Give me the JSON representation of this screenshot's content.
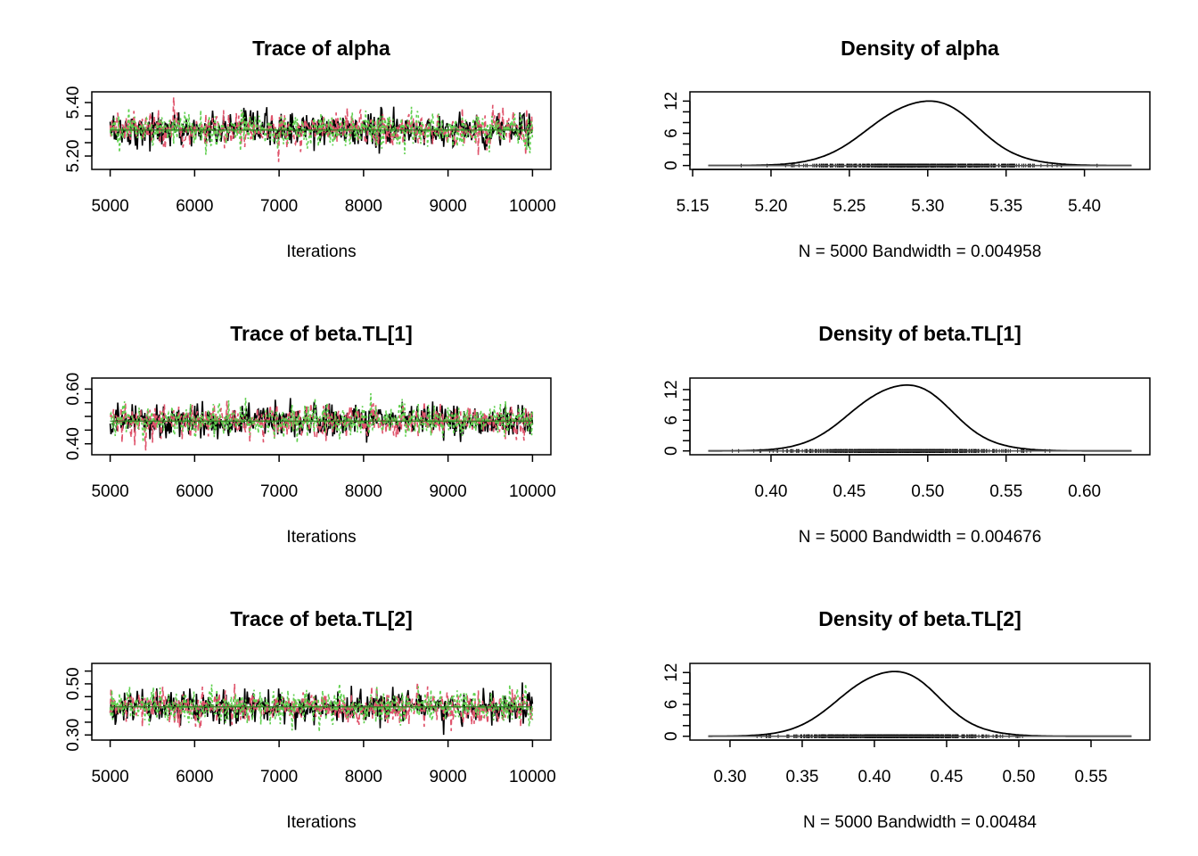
{
  "chart_data": [
    {
      "type": "line",
      "title": "Trace of alpha",
      "xlabel": "Iterations",
      "x_range": [
        5000,
        10000
      ],
      "xticks": [
        "5000",
        "6000",
        "7000",
        "8000",
        "9000",
        "10000"
      ],
      "ylim": [
        5.15,
        5.44
      ],
      "yticks": [
        "5.20",
        "5.40"
      ],
      "mean": 5.297,
      "sd": 0.032,
      "series_colors": [
        "#000000",
        "#DF536B",
        "#61D04F"
      ]
    },
    {
      "type": "area",
      "title": "Density of alpha",
      "xlabel": "N = 5000   Bandwidth = 0.004958",
      "x_range": [
        5.16,
        5.43
      ],
      "xticks": [
        "5.15",
        "5.20",
        "5.25",
        "5.30",
        "5.35",
        "5.40"
      ],
      "xtick_values": [
        5.15,
        5.2,
        5.25,
        5.3,
        5.35,
        5.4
      ],
      "ylim": [
        0,
        13
      ],
      "yticks": [
        "0",
        "6",
        "12"
      ],
      "ytick_values": [
        0,
        6,
        12
      ],
      "peak_x": 5.297,
      "peak_y": 12.3,
      "sd": 0.032
    },
    {
      "type": "line",
      "title": "Trace of beta.TL[1]",
      "xlabel": "Iterations",
      "x_range": [
        5000,
        10000
      ],
      "xticks": [
        "5000",
        "6000",
        "7000",
        "8000",
        "9000",
        "10000"
      ],
      "ylim": [
        0.36,
        0.64
      ],
      "yticks": [
        "0.40",
        "0.60"
      ],
      "mean": 0.483,
      "sd": 0.03,
      "series_colors": [
        "#000000",
        "#DF536B",
        "#61D04F"
      ]
    },
    {
      "type": "area",
      "title": "Density of beta.TL[1]",
      "xlabel": "N = 5000   Bandwidth = 0.004676",
      "x_range": [
        0.36,
        0.63
      ],
      "xticks": [
        "0.40",
        "0.45",
        "0.50",
        "0.55",
        "0.60"
      ],
      "xtick_values": [
        0.4,
        0.45,
        0.5,
        0.55,
        0.6
      ],
      "ylim": [
        0,
        13.5
      ],
      "yticks": [
        "0",
        "6",
        "12"
      ],
      "ytick_values": [
        0,
        6,
        12
      ],
      "peak_x": 0.483,
      "peak_y": 13.2,
      "sd": 0.03
    },
    {
      "type": "line",
      "title": "Trace of beta.TL[2]",
      "xlabel": "Iterations",
      "x_range": [
        5000,
        10000
      ],
      "xticks": [
        "5000",
        "6000",
        "7000",
        "8000",
        "9000",
        "10000"
      ],
      "ylim": [
        0.28,
        0.58
      ],
      "yticks": [
        "0.30",
        "0.50"
      ],
      "mean": 0.41,
      "sd": 0.032,
      "series_colors": [
        "#000000",
        "#DF536B",
        "#61D04F"
      ]
    },
    {
      "type": "area",
      "title": "Density of beta.TL[2]",
      "xlabel": "N = 5000   Bandwidth = 0.00484",
      "x_range": [
        0.285,
        0.578
      ],
      "xticks": [
        "0.30",
        "0.35",
        "0.40",
        "0.45",
        "0.50",
        "0.55"
      ],
      "xtick_values": [
        0.3,
        0.35,
        0.4,
        0.45,
        0.5,
        0.55
      ],
      "ylim": [
        0,
        13
      ],
      "yticks": [
        "0",
        "6",
        "12"
      ],
      "ytick_values": [
        0,
        6,
        12
      ],
      "peak_x": 0.41,
      "peak_y": 12.5,
      "sd": 0.032
    }
  ]
}
